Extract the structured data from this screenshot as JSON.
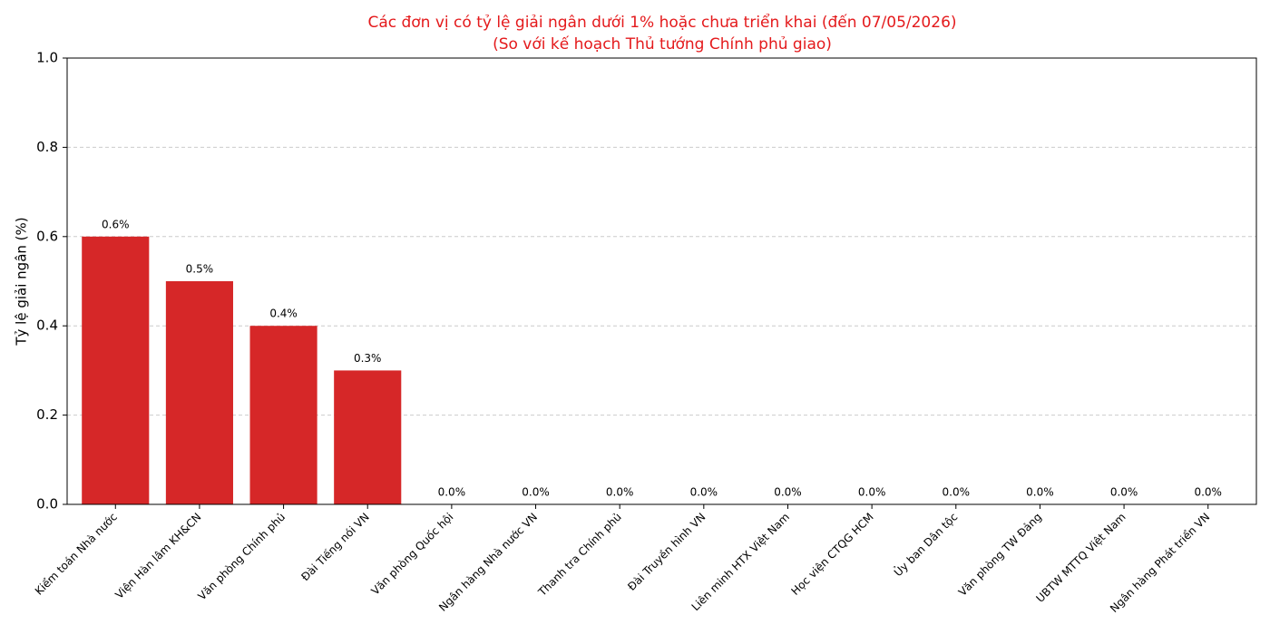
{
  "chart_data": {
    "type": "bar",
    "title": "Các đơn vị có tỷ lệ giải ngân dưới 1% hoặc chưa triển khai (đến 07/05/2026)",
    "subtitle": "(So với kế hoạch Thủ tướng Chính phủ giao)",
    "y_label": "Tỷ lệ giải ngân (%)",
    "categories": [
      "Kiểm toán Nhà nước",
      "Viện Hàn lâm KH&CN",
      "Văn phòng Chính phủ",
      "Đài Tiếng nói VN",
      "Văn phòng Quốc hội",
      "Ngân hàng Nhà nước VN",
      "Thanh tra Chính phủ",
      "Đài Truyền hình VN",
      "Liên minh HTX Việt Nam",
      "Học viện CTQG HCM",
      "Ủy ban Dân tộc",
      "Văn phòng TW Đảng",
      "UBTW MTTQ Việt Nam",
      "Ngân hàng Phát triển VN"
    ],
    "values": [
      0.6,
      0.5,
      0.4,
      0.3,
      0,
      0,
      0,
      0,
      0,
      0,
      0,
      0,
      0,
      0
    ],
    "value_labels": [
      "0.6%",
      "0.5%",
      "0.4%",
      "0.3%",
      "0.0%",
      "0.0%",
      "0.0%",
      "0.0%",
      "0.0%",
      "0.0%",
      "0.0%",
      "0.0%",
      "0.0%",
      "0.0%"
    ],
    "color": "#d62728",
    "ylim": [
      0,
      1
    ],
    "yticks": [
      {
        "value": 0,
        "label": "0.0"
      },
      0.2,
      0.4,
      0.6,
      0.8,
      {
        "value": 1,
        "label": "1.0"
      }
    ],
    "grid": true
  }
}
